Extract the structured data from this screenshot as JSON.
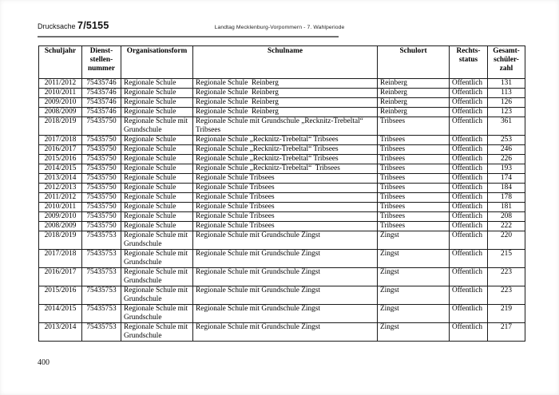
{
  "header": {
    "doc_label": "Drucksache",
    "doc_number": "7/5155",
    "center_text": "Landtag Mecklenburg-Vorpommern - 7. Wahlperiode"
  },
  "footer": {
    "page_number": "400"
  },
  "table": {
    "columns": [
      {
        "label": "Schuljahr"
      },
      {
        "label": "Dienst-\nstellen-\nnummer"
      },
      {
        "label": "Organisationsform"
      },
      {
        "label": "Schulname"
      },
      {
        "label": "Schulort"
      },
      {
        "label": "Rechts-\nstatus"
      },
      {
        "label": "Gesamt-\nschüler-\nzahl"
      }
    ],
    "rows": [
      [
        "2011/2012",
        "75435746",
        "Regionale Schule",
        "Regionale Schule  Reinberg",
        "Reinberg",
        "Öffentlich",
        "131"
      ],
      [
        "2010/2011",
        "75435746",
        "Regionale Schule",
        "Regionale Schule  Reinberg",
        "Reinberg",
        "Öffentlich",
        "113"
      ],
      [
        "2009/2010",
        "75435746",
        "Regionale Schule",
        "Regionale Schule  Reinberg",
        "Reinberg",
        "Öffentlich",
        "126"
      ],
      [
        "2008/2009",
        "75435746",
        "Regionale Schule",
        "Regionale Schule  Reinberg",
        "Reinberg",
        "Öffentlich",
        "123"
      ],
      [
        "2018/2019",
        "75435750",
        "Regionale Schule mit Grundschule",
        "Regionale Schule mit Grundschule „Recknitz-Trebeltal“ Tribsees",
        "Tribsees",
        "Öffentlich",
        "361"
      ],
      [
        "2017/2018",
        "75435750",
        "Regionale Schule",
        "Regionale Schule „Recknitz-Trebeltal“ Tribsees",
        "Tribsees",
        "Öffentlich",
        "253"
      ],
      [
        "2016/2017",
        "75435750",
        "Regionale Schule",
        "Regionale Schule „Recknitz-Trebeltal“ Tribsees",
        "Tribsees",
        "Öffentlich",
        "246"
      ],
      [
        "2015/2016",
        "75435750",
        "Regionale Schule",
        "Regionale Schule „Recknitz-Trebeltal“ Tribsees",
        "Tribsees",
        "Öffentlich",
        "226"
      ],
      [
        "2014/2015",
        "75435750",
        "Regionale Schule",
        "Regionale Schule „Recknitz-Trebeltal“  Tribsees",
        "Tribsees",
        "Öffentlich",
        "193"
      ],
      [
        "2013/2014",
        "75435750",
        "Regionale Schule",
        "Regionale Schule Tribsees",
        "Tribsees",
        "Öffentlich",
        "174"
      ],
      [
        "2012/2013",
        "75435750",
        "Regionale Schule",
        "Regionale Schule Tribsees",
        "Tribsees",
        "Öffentlich",
        "184"
      ],
      [
        "2011/2012",
        "75435750",
        "Regionale Schule",
        "Regionale Schule Tribsees",
        "Tribsees",
        "Öffentlich",
        "178"
      ],
      [
        "2010/2011",
        "75435750",
        "Regionale Schule",
        "Regionale Schule Tribsees",
        "Tribsees",
        "Öffentlich",
        "181"
      ],
      [
        "2009/2010",
        "75435750",
        "Regionale Schule",
        "Regionale Schule Tribsees",
        "Tribsees",
        "Öffentlich",
        "208"
      ],
      [
        "2008/2009",
        "75435750",
        "Regionale Schule",
        "Regionale Schule Tribsees",
        "Tribsees",
        "Öffentlich",
        "222"
      ],
      [
        "2018/2019",
        "75435753",
        "Regionale Schule mit Grundschule",
        "Regionale Schule mit Grundschule Zingst",
        "Zingst",
        "Öffentlich",
        "220"
      ],
      [
        "2017/2018",
        "75435753",
        "Regionale Schule mit Grundschule",
        "Regionale Schule mit Grundschule Zingst",
        "Zingst",
        "Öffentlich",
        "215"
      ],
      [
        "2016/2017",
        "75435753",
        "Regionale Schule mit Grundschule",
        "Regionale Schule mit Grundschule Zingst",
        "Zingst",
        "Öffentlich",
        "223"
      ],
      [
        "2015/2016",
        "75435753",
        "Regionale Schule mit Grundschule",
        "Regionale Schule mit Grundschule Zingst",
        "Zingst",
        "Öffentlich",
        "223"
      ],
      [
        "2014/2015",
        "75435753",
        "Regionale Schule mit Grundschule",
        "Regionale Schule mit Grundschule Zingst",
        "Zingst",
        "Öffentlich",
        "219"
      ],
      [
        "2013/2014",
        "75435753",
        "Regionale Schule mit Grundschule",
        "Regionale Schule mit Grundschule Zingst",
        "Zingst",
        "Öffentlich",
        "217"
      ]
    ]
  }
}
